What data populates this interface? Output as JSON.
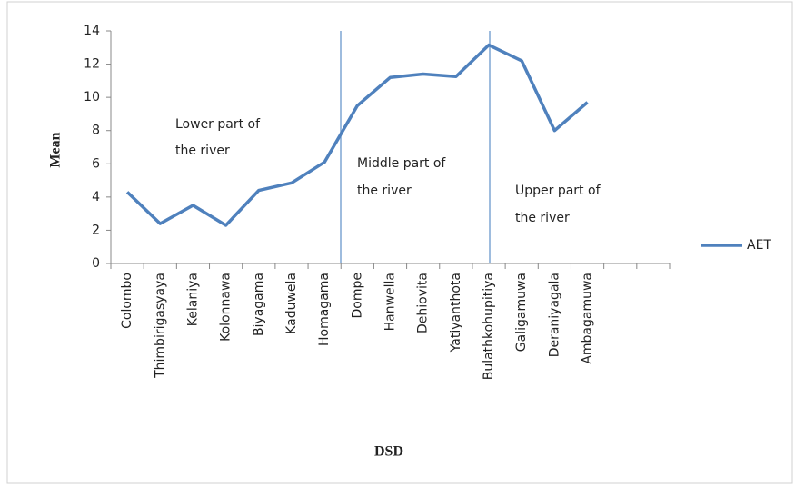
{
  "chart_data": {
    "type": "line",
    "categories": [
      "Colombo",
      "Thimbirigasyaya",
      "Kelaniya",
      "Kolonnawa",
      "Biyagama",
      "Kaduwela",
      "Homagama",
      "Dompe",
      "Hanwella",
      "Dehiovita",
      "Yatiyanthota",
      "Bulathkohupitiya",
      "Galigamuwa",
      "Deraniyagala",
      "Ambagamuwa",
      null,
      null
    ],
    "series": [
      {
        "name": "AET",
        "color": "#4f81bd",
        "values": [
          4.3,
          2.4,
          3.5,
          2.3,
          4.4,
          4.85,
          6.1,
          9.5,
          11.2,
          11.4,
          11.25,
          13.15,
          12.2,
          8.0,
          9.7,
          null,
          null
        ]
      }
    ],
    "ylim": [
      0,
      14
    ],
    "yticks": [
      0,
      2,
      4,
      6,
      8,
      10,
      12,
      14
    ],
    "x_label": "DSD",
    "y_label": "Mean",
    "annotations": [
      [
        "Lower part of",
        "the river"
      ],
      [
        "Middle part of",
        "the river"
      ],
      [
        "Upper part of",
        "the river"
      ]
    ],
    "legend": "right"
  }
}
